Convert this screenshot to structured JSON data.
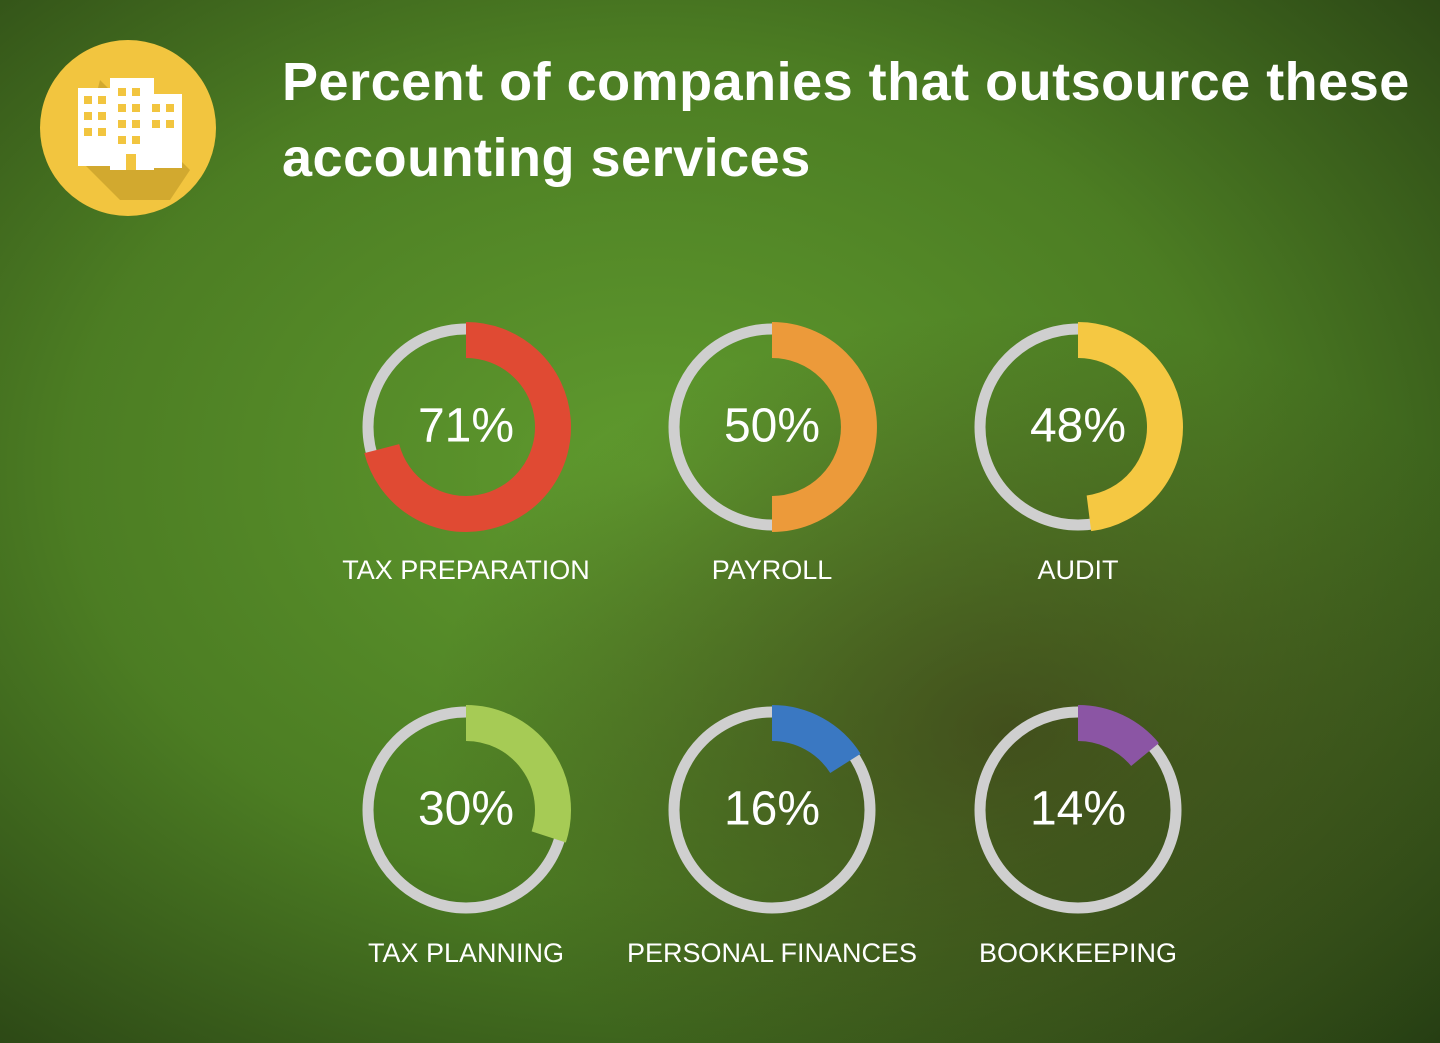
{
  "chart_data": {
    "type": "gauge",
    "title": "Percent of companies that outsource these accounting services",
    "categories": [
      "TAX PREPARATION",
      "PAYROLL",
      "AUDIT",
      "TAX PLANNING",
      "PERSONAL FINANCES",
      "BOOKKEEPING"
    ],
    "values": [
      71,
      50,
      48,
      30,
      16,
      14
    ],
    "value_labels": [
      "71%",
      "50%",
      "48%",
      "30%",
      "16%",
      "14%"
    ],
    "colors": [
      "#e04a33",
      "#ec9a3a",
      "#f5c842",
      "#a6cb55",
      "#3a78c2",
      "#8b55a4"
    ],
    "ylim": [
      0,
      100
    ]
  }
}
